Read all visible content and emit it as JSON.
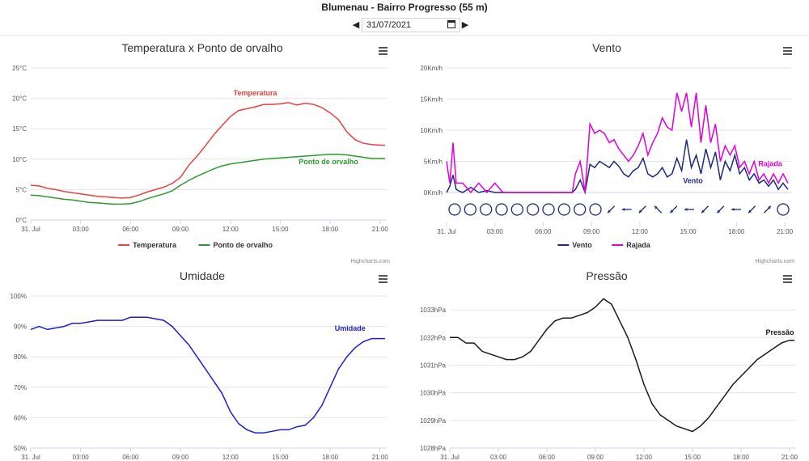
{
  "header": {
    "title": "Blumenau - Bairro Progresso (55 m)",
    "date_value": "31/07/2021",
    "prev_icon": "caret-left-icon",
    "next_icon": "caret-right-icon",
    "calendar_icon": "calendar-icon"
  },
  "credits": "Highcharts.com",
  "chart_data": [
    {
      "id": "temp",
      "type": "line",
      "title": "Temperatura x Ponto de orvalho",
      "x_unit": "hours",
      "x_tick_labels": [
        "31. Jul",
        "03:00",
        "06:00",
        "09:00",
        "12:00",
        "15:00",
        "18:00",
        "21:00"
      ],
      "xlim": [
        0,
        21.4
      ],
      "ylim": [
        0,
        25
      ],
      "y_ticks": [
        0,
        5,
        10,
        15,
        20,
        25
      ],
      "y_tick_labels": [
        "0°C",
        "5°C",
        "10°C",
        "15°C",
        "20°C",
        "25°C"
      ],
      "legend": "bottom-center",
      "grid": true,
      "series": [
        {
          "name": "Temperatura",
          "color": "#e8413f",
          "label": "Temperatura",
          "x": [
            0,
            0.5,
            1,
            1.5,
            2,
            2.5,
            3,
            3.5,
            4,
            4.5,
            5,
            5.5,
            6,
            6.5,
            7,
            7.5,
            8,
            8.5,
            9,
            9.5,
            10,
            10.5,
            11,
            11.5,
            12,
            12.5,
            13,
            13.5,
            14,
            14.5,
            15,
            15.5,
            16,
            16.5,
            17,
            17.5,
            18,
            18.5,
            19,
            19.5,
            20,
            20.5,
            21,
            21.3
          ],
          "y": [
            5.7,
            5.6,
            5.2,
            5.0,
            4.7,
            4.5,
            4.3,
            4.1,
            3.9,
            3.8,
            3.7,
            3.6,
            3.7,
            4.1,
            4.6,
            5.0,
            5.4,
            6.0,
            7.0,
            9.0,
            10.5,
            12.2,
            14.0,
            15.5,
            17.0,
            18.0,
            18.3,
            18.6,
            19.0,
            19.0,
            19.1,
            19.3,
            18.9,
            19.2,
            19.0,
            18.5,
            17.6,
            16.5,
            14.5,
            13.2,
            12.6,
            12.4,
            12.3,
            12.3
          ]
        },
        {
          "name": "Ponto de orvalho",
          "color": "#2e9a2e",
          "label": "Ponto de orvalho",
          "x": [
            0,
            0.5,
            1,
            1.5,
            2,
            2.5,
            3,
            3.5,
            4,
            4.5,
            5,
            5.5,
            6,
            6.5,
            7,
            7.5,
            8,
            8.5,
            9,
            9.5,
            10,
            10.5,
            11,
            11.5,
            12,
            12.5,
            13,
            13.5,
            14,
            14.5,
            15,
            15.5,
            16,
            16.5,
            17,
            17.5,
            18,
            18.5,
            19,
            19.5,
            20,
            20.5,
            21,
            21.3
          ],
          "y": [
            4.1,
            4.0,
            3.8,
            3.6,
            3.4,
            3.3,
            3.1,
            2.9,
            2.8,
            2.7,
            2.6,
            2.6,
            2.7,
            3.0,
            3.5,
            3.9,
            4.3,
            4.8,
            5.7,
            6.5,
            7.2,
            7.8,
            8.4,
            8.9,
            9.2,
            9.4,
            9.6,
            9.8,
            10.0,
            10.1,
            10.2,
            10.3,
            10.4,
            10.5,
            10.6,
            10.7,
            10.8,
            10.8,
            10.7,
            10.5,
            10.3,
            10.1,
            10.1,
            10.1
          ]
        }
      ]
    },
    {
      "id": "vento",
      "type": "line",
      "title": "Vento",
      "x_unit": "hours",
      "x_tick_labels": [
        "31. Jul",
        "03:00",
        "06:00",
        "09:00",
        "12:00",
        "15:00",
        "18:00",
        "21:00"
      ],
      "xlim": [
        0,
        21.4
      ],
      "ylim": [
        0,
        20
      ],
      "y_ticks": [
        0,
        5,
        10,
        15,
        20
      ],
      "y_tick_labels": [
        "0Km/h",
        "5Km/h",
        "10Km/h",
        "15Km/h",
        "20Km/h"
      ],
      "legend": "bottom-center",
      "grid": true,
      "series": [
        {
          "name": "Vento",
          "color": "#1f2a7a",
          "label": "Vento",
          "x": [
            0,
            0.2,
            0.4,
            0.6,
            0.8,
            1,
            1.5,
            2,
            2.5,
            3,
            3.5,
            4,
            5,
            6,
            7,
            7.8,
            8,
            8.3,
            8.6,
            8.9,
            9.2,
            9.5,
            9.8,
            10.1,
            10.4,
            10.7,
            11,
            11.3,
            11.6,
            11.9,
            12.2,
            12.5,
            12.8,
            13.1,
            13.4,
            13.7,
            14,
            14.3,
            14.6,
            14.9,
            15.2,
            15.5,
            15.8,
            16.1,
            16.4,
            16.7,
            17,
            17.3,
            17.6,
            17.9,
            18.2,
            18.5,
            18.8,
            19.1,
            19.4,
            19.7,
            20,
            20.3,
            20.6,
            20.9,
            21.2
          ],
          "y": [
            0,
            1,
            2.8,
            0.5,
            0.2,
            0,
            0.8,
            0,
            0.3,
            0,
            0,
            0,
            0,
            0,
            0,
            0,
            0.5,
            2,
            0,
            4.5,
            4,
            5,
            4.5,
            4,
            5,
            4.2,
            3,
            2.5,
            3.5,
            4,
            5.5,
            3,
            2.5,
            3,
            4,
            2.5,
            3,
            5.5,
            3.5,
            8.5,
            4,
            6,
            3,
            7,
            4,
            6.5,
            2,
            5,
            3.5,
            6,
            3,
            4,
            2,
            3,
            1.5,
            2,
            1,
            2,
            0.5,
            1.5,
            0.5
          ]
        },
        {
          "name": "Rajada",
          "color": "#e000d8",
          "label": "Rajada",
          "x": [
            0,
            0.2,
            0.4,
            0.6,
            0.8,
            1,
            1.5,
            2,
            2.5,
            3,
            3.5,
            4,
            5,
            6,
            7,
            7.8,
            8,
            8.3,
            8.6,
            8.9,
            9.2,
            9.5,
            9.8,
            10.1,
            10.4,
            10.7,
            11,
            11.3,
            11.6,
            11.9,
            12.2,
            12.5,
            12.8,
            13.1,
            13.4,
            13.7,
            14,
            14.3,
            14.6,
            14.9,
            15.2,
            15.5,
            15.8,
            16.1,
            16.4,
            16.7,
            17,
            17.3,
            17.6,
            17.9,
            18.2,
            18.5,
            18.8,
            19.1,
            19.4,
            19.7,
            20,
            20.3,
            20.6,
            20.9,
            21.2
          ],
          "y": [
            5,
            1.5,
            8,
            1.5,
            1.5,
            1.5,
            0,
            1.5,
            0,
            1.5,
            0,
            0,
            0,
            0,
            0,
            0,
            3,
            5,
            0,
            11,
            9.5,
            10,
            9.5,
            8,
            8.5,
            7,
            6,
            5,
            6,
            7.5,
            9.5,
            6,
            8,
            9.5,
            12,
            10.5,
            10,
            16,
            13,
            16,
            10.5,
            16,
            8,
            14,
            8,
            11,
            5,
            7.5,
            6,
            7.5,
            4,
            5,
            3,
            5,
            2,
            3,
            1.5,
            3,
            1.5,
            3,
            1.5
          ]
        }
      ],
      "wind_direction_icons": [
        "calm-icon",
        "calm-icon",
        "calm-icon",
        "calm-icon",
        "calm-icon",
        "calm-icon",
        "calm-icon",
        "calm-icon",
        "calm-icon",
        "calm-icon",
        "arrow-sw-icon",
        "arrow-w-icon",
        "arrow-sw-icon",
        "arrow-nw-icon",
        "arrow-sw-icon",
        "arrow-w-icon",
        "arrow-sw-icon",
        "arrow-sw-icon",
        "arrow-w-icon",
        "arrow-sw-icon",
        "arrow-ne-icon",
        "calm-icon"
      ]
    },
    {
      "id": "umidade",
      "type": "line",
      "title": "Umidade",
      "x_unit": "hours",
      "x_tick_labels": [
        "31. Jul",
        "03:00",
        "06:00",
        "09:00",
        "12:00",
        "15:00",
        "18:00",
        "21:00"
      ],
      "xlim": [
        0,
        21.4
      ],
      "ylim": [
        50,
        100
      ],
      "y_ticks": [
        50,
        60,
        70,
        80,
        90,
        100
      ],
      "y_tick_labels": [
        "50%",
        "60%",
        "70%",
        "80%",
        "90%",
        "100%"
      ],
      "grid": true,
      "series": [
        {
          "name": "Umidade",
          "color": "#1e1ecc",
          "label": "Umidade",
          "x": [
            0,
            0.5,
            1,
            1.5,
            2,
            2.5,
            3,
            3.5,
            4,
            4.5,
            5,
            5.5,
            6,
            6.5,
            7,
            7.5,
            8,
            8.5,
            9,
            9.5,
            10,
            10.5,
            11,
            11.5,
            12,
            12.5,
            13,
            13.5,
            14,
            14.5,
            15,
            15.5,
            16,
            16.5,
            17,
            17.5,
            18,
            18.5,
            19,
            19.5,
            20,
            20.5,
            21,
            21.3
          ],
          "y": [
            89,
            90,
            89,
            89.5,
            90,
            91,
            91,
            91.5,
            92,
            92,
            92,
            92,
            93,
            93,
            93,
            92.5,
            92,
            90,
            87,
            84,
            80,
            76,
            72,
            68,
            62,
            58,
            56,
            55,
            55,
            55.5,
            56,
            56,
            57,
            57.5,
            60,
            64,
            70,
            76,
            80,
            83,
            85,
            86,
            86,
            86
          ]
        }
      ]
    },
    {
      "id": "pressao",
      "type": "line",
      "title": "Pressão",
      "x_unit": "hours",
      "x_tick_labels": [
        "31. Jul",
        "03:00",
        "06:00",
        "09:00",
        "12:00",
        "15:00",
        "18:00",
        "21:00"
      ],
      "xlim": [
        0,
        21.4
      ],
      "ylim": [
        1028,
        1033.5
      ],
      "y_ticks": [
        1028,
        1029,
        1030,
        1031,
        1032,
        1033
      ],
      "y_tick_labels": [
        "1028hPa",
        "1029hPa",
        "1030hPa",
        "1031hPa",
        "1032hPa",
        "1033hPa"
      ],
      "grid": true,
      "series": [
        {
          "name": "Pressão",
          "color": "#1a1a1a",
          "label": "Pressão",
          "x": [
            0,
            0.5,
            1,
            1.5,
            2,
            2.5,
            3,
            3.5,
            4,
            4.5,
            5,
            5.5,
            6,
            6.5,
            7,
            7.5,
            8,
            8.5,
            9,
            9.5,
            10,
            10.5,
            11,
            11.5,
            12,
            12.5,
            13,
            13.5,
            14,
            14.5,
            15,
            15.5,
            16,
            16.5,
            17,
            17.5,
            18,
            18.5,
            19,
            19.5,
            20,
            20.5,
            21,
            21.3
          ],
          "y": [
            1032,
            1032,
            1031.8,
            1031.8,
            1031.5,
            1031.4,
            1031.3,
            1031.2,
            1031.2,
            1031.3,
            1031.5,
            1031.9,
            1032.3,
            1032.6,
            1032.7,
            1032.7,
            1032.8,
            1032.9,
            1033.1,
            1033.4,
            1033.2,
            1032.6,
            1032.0,
            1031.2,
            1030.3,
            1029.6,
            1029.2,
            1029.0,
            1028.8,
            1028.7,
            1028.6,
            1028.8,
            1029.1,
            1029.5,
            1029.9,
            1030.3,
            1030.6,
            1030.9,
            1031.2,
            1031.4,
            1031.6,
            1031.8,
            1031.9,
            1031.9
          ]
        }
      ]
    }
  ]
}
